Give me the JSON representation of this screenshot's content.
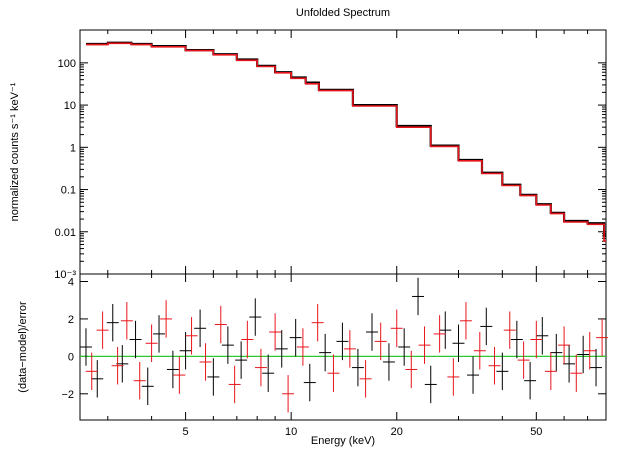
{
  "chart_data": [
    {
      "type": "line",
      "title": "Unfolded Spectrum",
      "xlabel": "",
      "ylabel": "normalized counts s⁻¹ keV⁻¹",
      "xscale": "log",
      "yscale": "log",
      "xlim": [
        2.5,
        79
      ],
      "ylim": [
        0.001,
        600
      ],
      "ytick_labels": [
        "10⁻³",
        "0.01",
        "0.1",
        "1",
        "10",
        "100"
      ],
      "ytick_values": [
        0.001,
        0.01,
        0.1,
        1,
        10,
        100
      ],
      "series": [
        {
          "color": "#000000",
          "x": [
            2.6,
            3.0,
            3.5,
            4.0,
            5.0,
            6.0,
            7.0,
            8.0,
            9.0,
            10.0,
            11.0,
            12.0,
            15.0,
            20.0,
            25.0,
            30.0,
            35.0,
            40.0,
            45.0,
            50.0,
            55.0,
            60.0,
            70.0,
            78.0
          ],
          "y": [
            280,
            300,
            280,
            250,
            200,
            160,
            120,
            85,
            60,
            45,
            34,
            23,
            10,
            3.2,
            1.1,
            0.5,
            0.25,
            0.13,
            0.075,
            0.045,
            0.028,
            0.018,
            0.016,
            0.008
          ]
        },
        {
          "color": "#e8141b",
          "x": [
            2.6,
            3.0,
            3.5,
            4.0,
            5.0,
            6.0,
            7.0,
            8.0,
            9.0,
            10.0,
            11.0,
            12.0,
            15.0,
            20.0,
            25.0,
            30.0,
            35.0,
            40.0,
            45.0,
            50.0,
            55.0,
            60.0,
            70.0,
            78.0
          ],
          "y": [
            270,
            290,
            270,
            240,
            195,
            155,
            115,
            82,
            58,
            43,
            32,
            22,
            9.5,
            3.0,
            1.05,
            0.48,
            0.24,
            0.125,
            0.072,
            0.043,
            0.027,
            0.017,
            0.015,
            0.006
          ]
        }
      ]
    },
    {
      "type": "scatter",
      "title": "",
      "xlabel": "Energy (keV)",
      "ylabel": "(data−model)/error",
      "xscale": "log",
      "xlim": [
        2.5,
        79
      ],
      "ylim": [
        -3.4,
        4.4
      ],
      "xtick_labels": [
        "5",
        "10",
        "20",
        "50"
      ],
      "xtick_values": [
        5,
        10,
        20,
        50
      ],
      "ytick_labels": [
        "−2",
        "0",
        "2",
        "4"
      ],
      "ytick_values": [
        -2,
        0,
        2,
        4
      ],
      "zero_line_color": "#2ec82e",
      "series": [
        {
          "color": "#000000",
          "x": [
            2.6,
            2.8,
            3.1,
            3.3,
            3.6,
            3.9,
            4.2,
            4.6,
            5.0,
            5.5,
            6.0,
            6.6,
            7.2,
            7.9,
            8.6,
            9.4,
            10.3,
            11.3,
            12.5,
            14.0,
            15.5,
            17.0,
            19.0,
            21.0,
            23.0,
            25.0,
            27.5,
            30.0,
            33.0,
            36.0,
            40.0,
            44.0,
            48.0,
            52.0,
            57.0,
            62.0,
            68.0,
            74.0
          ],
          "y": [
            0.5,
            -1.2,
            1.8,
            -0.4,
            0.9,
            -1.6,
            1.2,
            -0.7,
            0.3,
            1.5,
            -1.1,
            0.6,
            -0.2,
            2.1,
            -0.9,
            0.4,
            1.0,
            -1.4,
            0.2,
            0.8,
            -0.6,
            1.3,
            -0.3,
            0.5,
            3.2,
            -1.5,
            1.4,
            0.7,
            -1.0,
            1.6,
            -0.8,
            0.9,
            -1.3,
            1.1,
            0.2,
            -0.4,
            0.1,
            -0.6
          ]
        },
        {
          "color": "#e8141b",
          "x": [
            2.7,
            2.9,
            3.2,
            3.4,
            3.7,
            4.0,
            4.4,
            4.8,
            5.2,
            5.7,
            6.3,
            6.9,
            7.5,
            8.2,
            9.0,
            9.8,
            10.8,
            11.9,
            13.2,
            14.7,
            16.3,
            18.0,
            20.0,
            22.0,
            24.0,
            26.5,
            29.0,
            31.5,
            34.5,
            38.0,
            42.0,
            46.0,
            50.0,
            55.0,
            60.0,
            65.0,
            71.0,
            77.0
          ],
          "y": [
            -0.8,
            1.4,
            -0.5,
            1.9,
            -1.3,
            0.7,
            2.0,
            -1.0,
            1.1,
            -0.3,
            1.7,
            -1.5,
            0.9,
            -0.6,
            1.3,
            -2.0,
            0.5,
            1.8,
            -0.9,
            0.4,
            -1.2,
            0.8,
            1.5,
            -0.7,
            0.6,
            1.2,
            -1.1,
            1.9,
            0.3,
            -0.5,
            1.4,
            -0.2,
            0.9,
            -0.8,
            0.6,
            -0.9,
            0.3,
            1.0
          ]
        }
      ]
    }
  ]
}
